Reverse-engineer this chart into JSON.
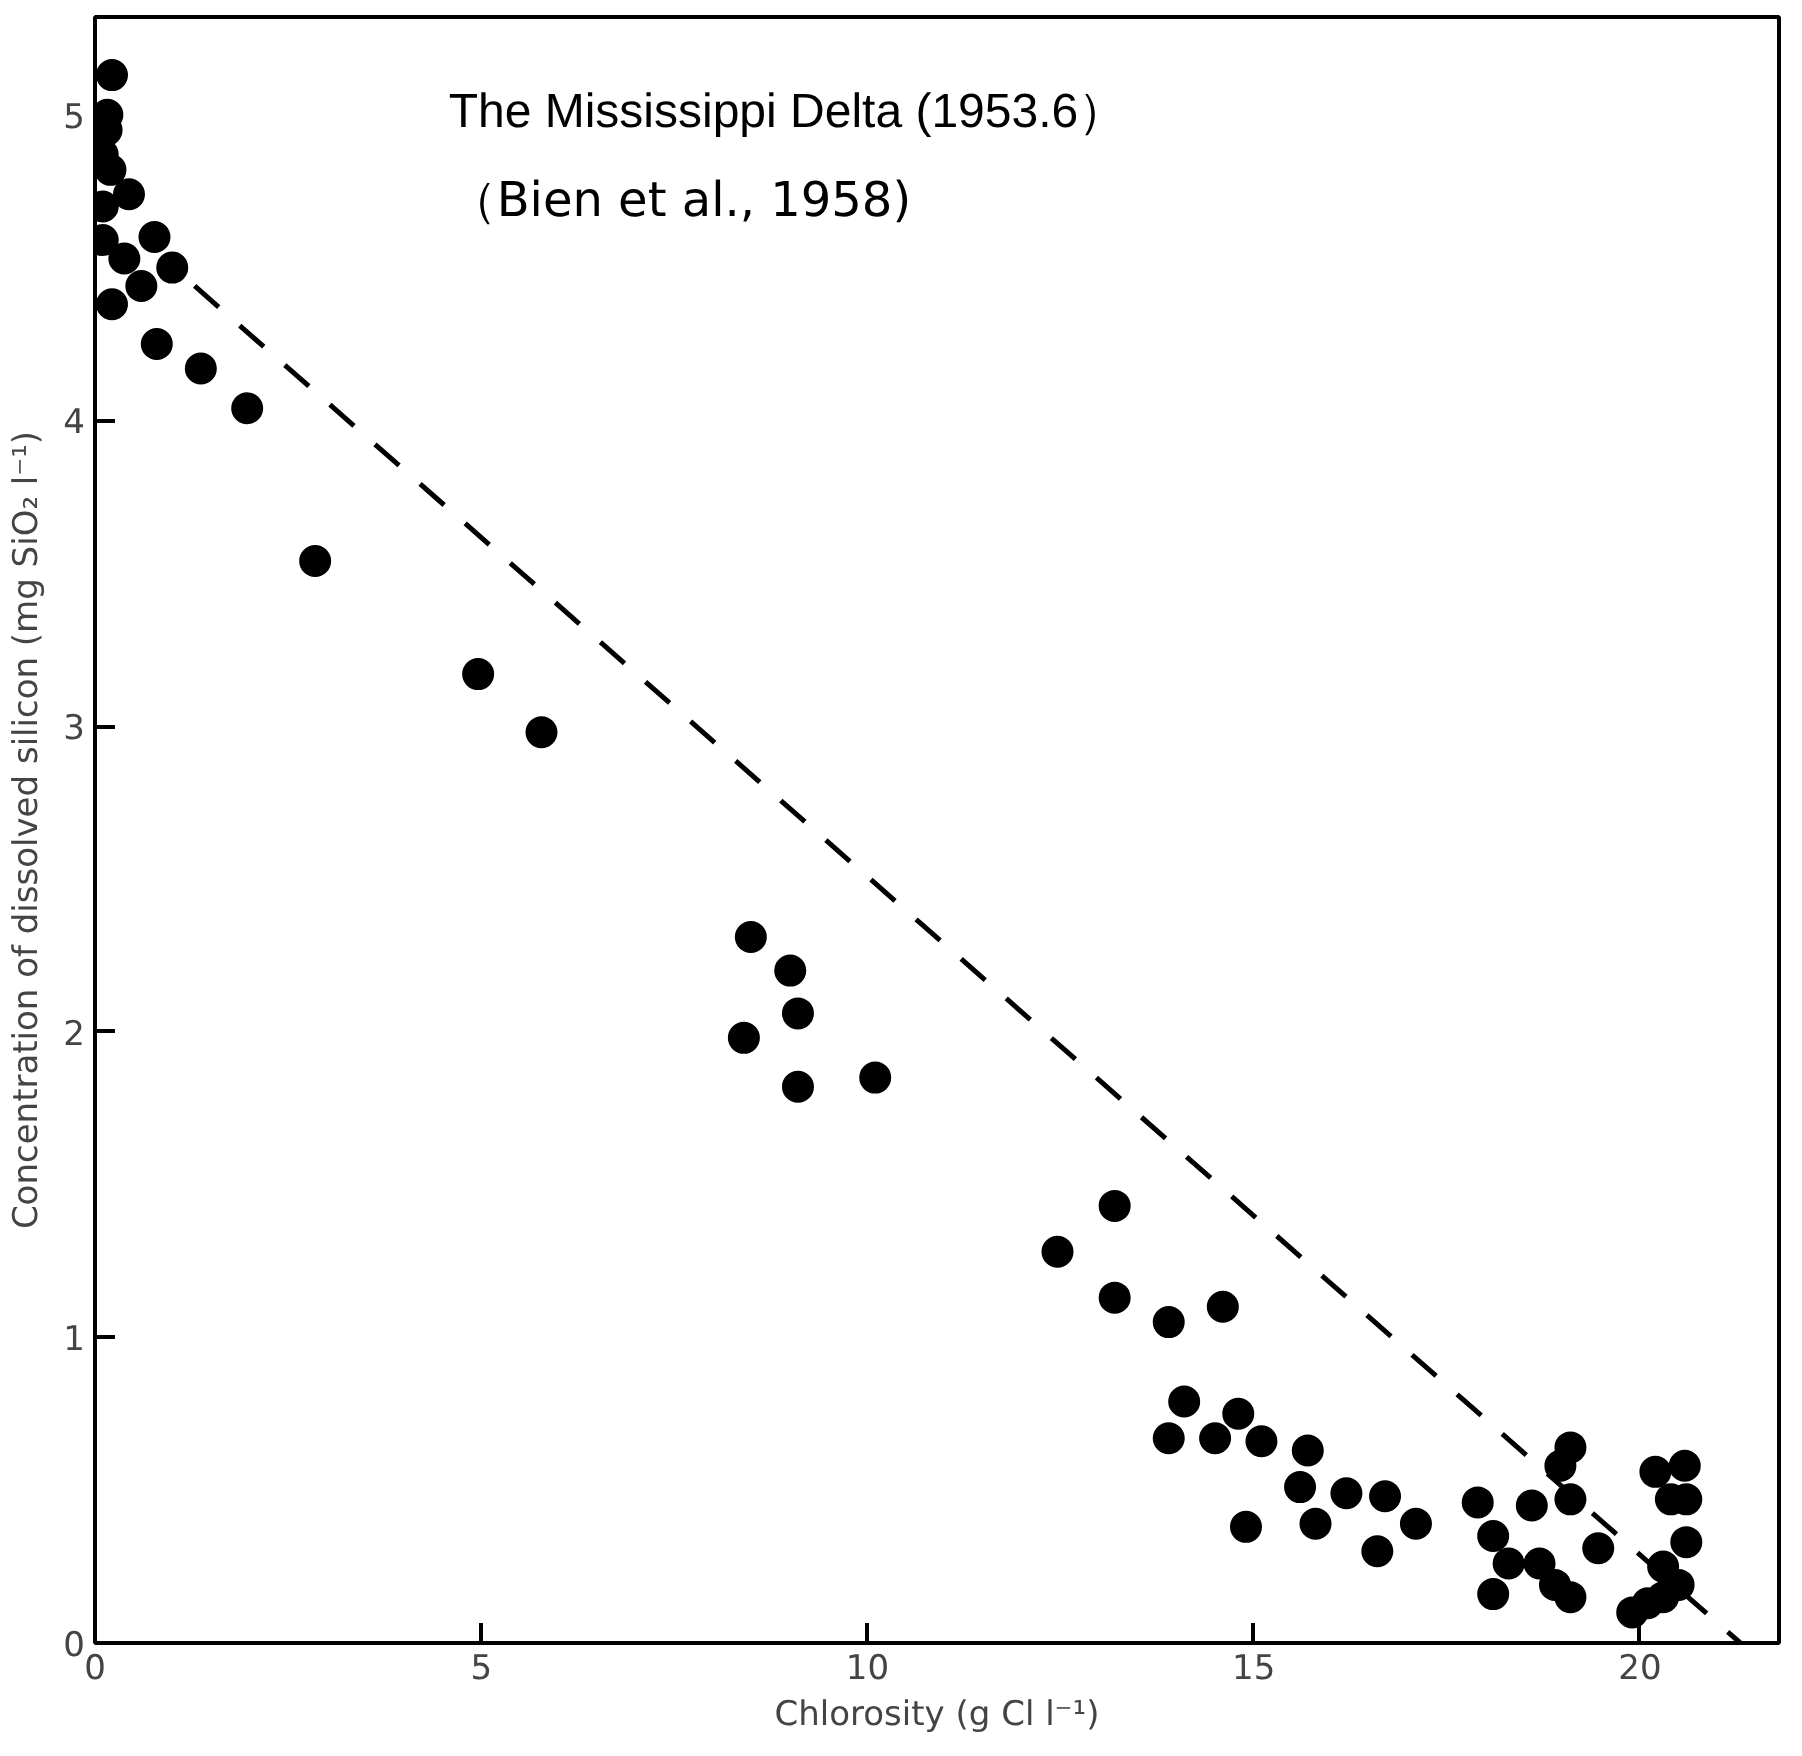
{
  "chart_data": {
    "type": "scatter",
    "title": "The Mississippi Delta (1953.6）",
    "subtitle": "（Bien et al., 1958)",
    "xlabel": "Chlorosity (g Cl l⁻¹)",
    "ylabel": "Concentration of dissolved silicon (mg SiO₂ l⁻¹)",
    "xlim": [
      0,
      21.8
    ],
    "ylim": [
      0,
      5.32
    ],
    "xticks": [
      0,
      5,
      10,
      15,
      20
    ],
    "yticks": [
      0,
      1,
      2,
      3,
      4,
      5
    ],
    "grid": false,
    "series": [
      {
        "marker": "circle",
        "color": "#000000",
        "x": [
          0.22,
          0.16,
          0.15,
          0.1,
          0.2,
          0.44,
          0.1,
          0.1,
          0.38,
          0.22,
          0.77,
          0.6,
          1.0,
          0.8,
          1.37,
          1.97,
          2.85,
          4.96,
          5.78,
          8.49,
          9.0,
          9.1,
          8.4,
          9.1,
          10.1,
          12.46,
          13.2,
          13.2,
          13.9,
          14.6,
          14.1,
          13.9,
          14.5,
          14.8,
          15.1,
          14.9,
          15.7,
          15.6,
          15.8,
          16.2,
          16.7,
          16.6,
          17.1,
          17.9,
          18.1,
          18.3,
          18.1,
          18.6,
          18.7,
          18.97,
          19.1,
          19.1,
          18.9,
          19.1,
          19.46,
          19.9,
          20.1,
          20.3,
          20.3,
          20.2,
          20.58,
          20.4,
          20.6,
          20.6,
          20.5
        ],
        "values": [
          5.13,
          5.0,
          4.95,
          4.87,
          4.82,
          4.74,
          4.7,
          4.59,
          4.53,
          4.38,
          4.6,
          4.44,
          4.5,
          4.25,
          4.17,
          4.04,
          3.54,
          3.17,
          2.98,
          2.31,
          2.2,
          2.06,
          1.98,
          1.82,
          1.85,
          1.28,
          1.43,
          1.13,
          1.05,
          1.1,
          0.79,
          0.67,
          0.67,
          0.75,
          0.66,
          0.38,
          0.63,
          0.51,
          0.39,
          0.49,
          0.48,
          0.3,
          0.39,
          0.46,
          0.35,
          0.26,
          0.16,
          0.45,
          0.26,
          0.58,
          0.64,
          0.47,
          0.19,
          0.15,
          0.31,
          0.1,
          0.13,
          0.15,
          0.25,
          0.56,
          0.58,
          0.47,
          0.47,
          0.33,
          0.19
        ]
      },
      {
        "type": "line",
        "line_style": "dashed",
        "color": "#000000",
        "x": [
          1.29,
          21.3
        ],
        "values": [
          4.44,
          0
        ]
      }
    ]
  }
}
